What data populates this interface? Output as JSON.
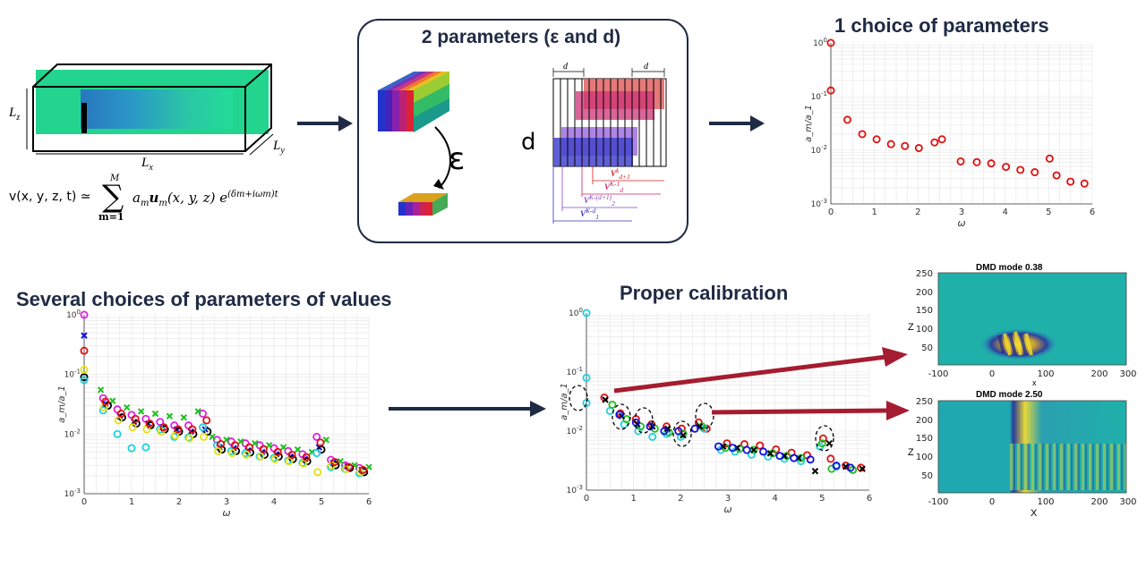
{
  "panel_box": {
    "title": "2 parameters (ε and d)",
    "epsilon_label": "ε",
    "d_label": "d",
    "dim_label": "d"
  },
  "domain_box": {
    "lz": "L",
    "lz_sub": "z",
    "ly": "L",
    "ly_sub": "y",
    "lx": "L",
    "lx_sub": "x"
  },
  "formula": {
    "lhs": "v(x, y, z, t) ≃",
    "sum_top": "M",
    "sum_bottom": "m=1",
    "body": "a",
    "body_sub": "m",
    "vec": "u",
    "vec_args": "(x, y, z) e",
    "exp": "(δm+iωm)t"
  },
  "hankel_labels": [
    "V",
    "V",
    "V",
    "V"
  ],
  "hankel_sups": [
    "k",
    "K-1",
    "K-(d+1)",
    "K-d"
  ],
  "hankel_subs": [
    "d+1",
    "d",
    "2",
    "1"
  ],
  "colors": {
    "navy": "#1f2a44",
    "arrow_dark": "#1f2a44",
    "arrow_red": "#a51c30"
  },
  "plot1": {
    "title": "1 choice of parameters"
  },
  "plot2": {
    "title": "Several choices of parameters of values"
  },
  "plot3": {
    "title": "Proper calibration"
  },
  "dmd1": {
    "title": "DMD mode 0.38",
    "ylabel": "Z",
    "xlabel": "x"
  },
  "dmd2": {
    "title": "DMD mode 2.50",
    "ylabel": "Z",
    "xlabel": "X"
  },
  "chart_data": [
    {
      "type": "scatter",
      "title": "1 choice of parameters",
      "xlabel": "ω",
      "ylabel": "a_m/a_1",
      "xlim": [
        0,
        6
      ],
      "ylim": [
        0.001,
        1
      ],
      "yscale": "log",
      "xticks": [
        "0",
        "1",
        "2",
        "3",
        "4",
        "5",
        "6"
      ],
      "yticks": [
        "10^0",
        "10^-1",
        "10^-2",
        "10^-3"
      ],
      "grid": true,
      "series": [
        {
          "color": "#e01010",
          "marker": "circle",
          "x": [
            0,
            0,
            0.38,
            0.72,
            1.05,
            1.38,
            1.7,
            2.02,
            2.38,
            2.55,
            2.98,
            3.35,
            3.68,
            4.02,
            4.35,
            4.68,
            5.02,
            5.18,
            5.5,
            5.82
          ],
          "y": [
            1.0,
            0.13,
            0.037,
            0.02,
            0.016,
            0.013,
            0.012,
            0.011,
            0.014,
            0.016,
            0.0062,
            0.006,
            0.0057,
            0.0049,
            0.0043,
            0.0039,
            0.007,
            0.0034,
            0.0026,
            0.0024
          ]
        }
      ]
    },
    {
      "type": "scatter",
      "title": "Several choices of parameters of values",
      "xlabel": "ω",
      "ylabel": "a_m/a_1",
      "xlim": [
        0,
        6
      ],
      "ylim": [
        0.001,
        1
      ],
      "yscale": "log",
      "xticks": [
        "0",
        "1",
        "2",
        "3",
        "4",
        "5",
        "6"
      ],
      "yticks": [
        "10^0",
        "10^-1",
        "10^-2",
        "10^-3"
      ],
      "grid": true,
      "series": [
        {
          "color": "#e020e0",
          "marker": "circle",
          "x": [
            0,
            0.4,
            0.7,
            1.0,
            1.3,
            1.6,
            1.9,
            2.2,
            2.5,
            2.8,
            3.1,
            3.4,
            3.7,
            4.0,
            4.3,
            4.6,
            4.9,
            5.2,
            5.5,
            5.8
          ],
          "y": [
            1.0,
            0.04,
            0.026,
            0.021,
            0.018,
            0.016,
            0.014,
            0.014,
            0.022,
            0.008,
            0.0075,
            0.007,
            0.0065,
            0.0058,
            0.0052,
            0.0046,
            0.009,
            0.0037,
            0.003,
            0.0027
          ]
        },
        {
          "color": "#20c020",
          "marker": "cross",
          "x": [
            0.35,
            0.6,
            0.9,
            1.2,
            1.5,
            1.8,
            2.1,
            2.4,
            2.7,
            3.0,
            3.3,
            3.6,
            3.9,
            4.2,
            4.5,
            4.8,
            5.1,
            5.4,
            5.7,
            6.0
          ],
          "y": [
            0.055,
            0.036,
            0.028,
            0.024,
            0.022,
            0.02,
            0.019,
            0.024,
            0.009,
            0.008,
            0.0075,
            0.007,
            0.0065,
            0.006,
            0.0055,
            0.005,
            0.008,
            0.0035,
            0.003,
            0.0028
          ]
        },
        {
          "color": "#1010e0",
          "marker": "cross",
          "x": [
            0,
            0.45,
            0.75,
            1.05,
            1.35,
            1.65,
            1.95,
            2.25,
            2.55,
            2.85,
            3.15,
            3.45,
            3.75,
            4.05,
            4.35,
            4.65,
            4.95,
            5.25,
            5.55,
            5.85
          ],
          "y": [
            0.45,
            0.032,
            0.02,
            0.016,
            0.015,
            0.013,
            0.012,
            0.011,
            0.012,
            0.006,
            0.0058,
            0.0053,
            0.005,
            0.0046,
            0.0042,
            0.0038,
            0.006,
            0.0033,
            0.0029,
            0.0025
          ]
        },
        {
          "color": "#000000",
          "marker": "circle",
          "x": [
            0,
            0.5,
            0.8,
            1.1,
            1.4,
            1.7,
            2.0,
            2.3,
            2.6,
            2.9,
            3.2,
            3.5,
            3.8,
            4.1,
            4.4,
            4.7,
            5.0,
            5.3,
            5.6,
            5.9
          ],
          "y": [
            0.09,
            0.03,
            0.019,
            0.015,
            0.014,
            0.012,
            0.011,
            0.01,
            0.011,
            0.0055,
            0.0052,
            0.0049,
            0.0045,
            0.0042,
            0.0038,
            0.0035,
            0.0055,
            0.003,
            0.0027,
            0.0023
          ]
        },
        {
          "color": "#20d0e0",
          "marker": "circle",
          "x": [
            0,
            0.4,
            0.7,
            1.0,
            1.3,
            1.6,
            1.9,
            2.2,
            2.5,
            2.8,
            3.1,
            3.4,
            3.7,
            4.0,
            4.3,
            4.6,
            4.9,
            5.2,
            5.5,
            5.8
          ],
          "y": [
            0.08,
            0.025,
            0.01,
            0.0058,
            0.006,
            0.012,
            0.009,
            0.0088,
            0.013,
            0.0065,
            0.0052,
            0.0048,
            0.0042,
            0.004,
            0.0036,
            0.0033,
            0.0048,
            0.0028,
            0.0026,
            0.0022
          ]
        },
        {
          "color": "#e8e010",
          "marker": "circle",
          "x": [
            0,
            0.42,
            0.72,
            1.02,
            1.32,
            1.62,
            1.92,
            2.22,
            2.52,
            2.82,
            3.12,
            3.42,
            3.72,
            4.02,
            4.32,
            4.62,
            4.92,
            5.22,
            5.52,
            5.82
          ],
          "y": [
            0.12,
            0.028,
            0.017,
            0.013,
            0.012,
            0.011,
            0.0095,
            0.0085,
            0.009,
            0.0052,
            0.0048,
            0.0045,
            0.0042,
            0.0038,
            0.0035,
            0.0032,
            0.0023,
            0.003,
            0.0026,
            0.0023
          ]
        },
        {
          "color": "#e01010",
          "marker": "circle",
          "x": [
            0,
            0.45,
            0.78,
            1.08,
            1.38,
            1.68,
            1.98,
            2.28,
            2.58,
            2.88,
            3.18,
            3.48,
            3.78,
            4.08,
            4.38,
            4.68,
            4.98,
            5.28,
            5.58,
            5.88
          ],
          "y": [
            0.25,
            0.035,
            0.022,
            0.018,
            0.015,
            0.013,
            0.012,
            0.012,
            0.017,
            0.0068,
            0.0065,
            0.006,
            0.0056,
            0.005,
            0.0045,
            0.0041,
            0.0072,
            0.0034,
            0.0028,
            0.0025
          ]
        }
      ]
    },
    {
      "type": "scatter",
      "title": "Proper calibration",
      "xlabel": "ω",
      "ylabel": "a_m/a_1",
      "xlim": [
        0,
        6
      ],
      "ylim": [
        0.001,
        1
      ],
      "yscale": "log",
      "xticks": [
        "0",
        "1",
        "2",
        "3",
        "4",
        "5",
        "6"
      ],
      "yticks": [
        "10^0",
        "10^-1",
        "10^-2",
        "10^-3"
      ],
      "grid": true,
      "series": [
        {
          "color": "#e01010",
          "marker": "circle",
          "x": [
            0.38,
            0.72,
            1.05,
            1.38,
            1.7,
            2.02,
            2.38,
            2.55,
            2.98,
            3.35,
            3.68,
            4.02,
            4.35,
            4.68,
            5.02,
            5.18,
            5.5,
            5.82
          ],
          "y": [
            0.037,
            0.02,
            0.016,
            0.013,
            0.012,
            0.011,
            0.014,
            0.011,
            0.0062,
            0.006,
            0.0057,
            0.0049,
            0.0043,
            0.0039,
            0.0075,
            0.0034,
            0.0026,
            0.0024
          ]
        },
        {
          "color": "#20d0e0",
          "marker": "circle",
          "x": [
            0,
            0,
            0,
            0.5,
            0.8,
            1.1,
            1.4,
            1.7,
            2.0,
            2.5,
            2.85,
            3.15,
            3.5,
            3.85,
            4.2,
            4.55,
            4.95,
            5.3,
            5.65
          ],
          "y": [
            1.0,
            0.08,
            0.03,
            0.022,
            0.013,
            0.01,
            0.008,
            0.009,
            0.008,
            0.011,
            0.0048,
            0.0045,
            0.004,
            0.0037,
            0.0034,
            0.0031,
            0.0055,
            0.0025,
            0.0022
          ]
        },
        {
          "color": "#20c020",
          "marker": "circle",
          "x": [
            0.55,
            0.85,
            1.15,
            1.45,
            1.75,
            2.05,
            2.45,
            2.95,
            3.25,
            3.55,
            3.95,
            4.25,
            4.55,
            5.0,
            5.2,
            5.65
          ],
          "y": [
            0.028,
            0.016,
            0.012,
            0.011,
            0.0095,
            0.009,
            0.012,
            0.0052,
            0.005,
            0.0048,
            0.0042,
            0.0038,
            0.0035,
            0.0062,
            0.0023,
            0.0022
          ]
        },
        {
          "color": "#000000",
          "marker": "cross",
          "x": [
            0.4,
            0.75,
            1.08,
            1.4,
            1.72,
            2.05,
            2.4,
            2.9,
            3.2,
            3.55,
            3.9,
            4.2,
            4.5,
            4.85,
            5.15,
            5.5,
            5.85
          ],
          "y": [
            0.034,
            0.018,
            0.013,
            0.012,
            0.011,
            0.0085,
            0.012,
            0.0055,
            0.0052,
            0.0048,
            0.0042,
            0.0038,
            0.0035,
            0.0021,
            0.0062,
            0.0025,
            0.0023
          ]
        },
        {
          "color": "#1010e0",
          "marker": "circle",
          "x": [
            0.7,
            1.05,
            1.35,
            1.65,
            1.95,
            2.3,
            2.8,
            3.1,
            3.4,
            3.75,
            4.1,
            4.4,
            4.75,
            5.3,
            5.6
          ],
          "y": [
            0.019,
            0.014,
            0.012,
            0.01,
            0.01,
            0.011,
            0.0055,
            0.0052,
            0.0048,
            0.0045,
            0.0038,
            0.0035,
            0.0033,
            0.0026,
            0.0024
          ]
        }
      ]
    }
  ]
}
